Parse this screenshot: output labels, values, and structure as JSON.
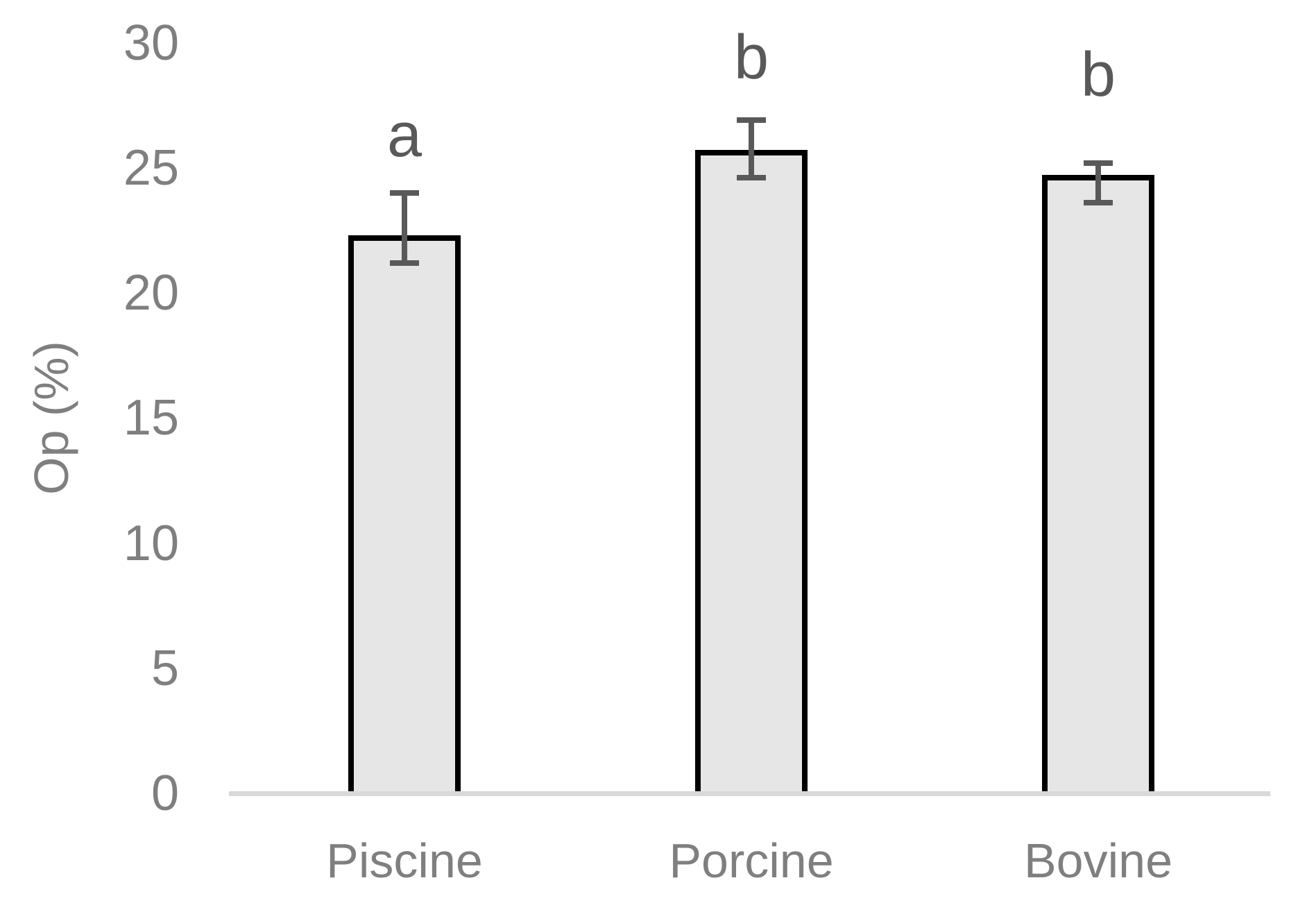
{
  "chart_data": {
    "type": "bar",
    "title": "",
    "xlabel": "",
    "ylabel": "Op (%)",
    "ylim": [
      0,
      30
    ],
    "yticks": [
      0,
      5,
      10,
      15,
      20,
      25,
      30
    ],
    "grid": false,
    "legend": "none",
    "categories": [
      "Piscine",
      "Porcine",
      "Bovine"
    ],
    "values": [
      22.2,
      25.6,
      24.6
    ],
    "error_bar_top": [
      24.0,
      26.9,
      25.2
    ],
    "error_bar_bottom": [
      21.2,
      24.6,
      23.6
    ],
    "significance_letters": [
      "a",
      "b",
      "b"
    ],
    "significance_letter_y": [
      26.3,
      29.4,
      28.7
    ]
  },
  "colors": {
    "background": "#ffffff",
    "bar_fill": "#e6e6e6",
    "bar_border": "#000000",
    "error_bar": "#595959",
    "significance_letter": "#595959",
    "axis_text": "#7f7f7f",
    "axis_line": "#d9d9d9"
  }
}
